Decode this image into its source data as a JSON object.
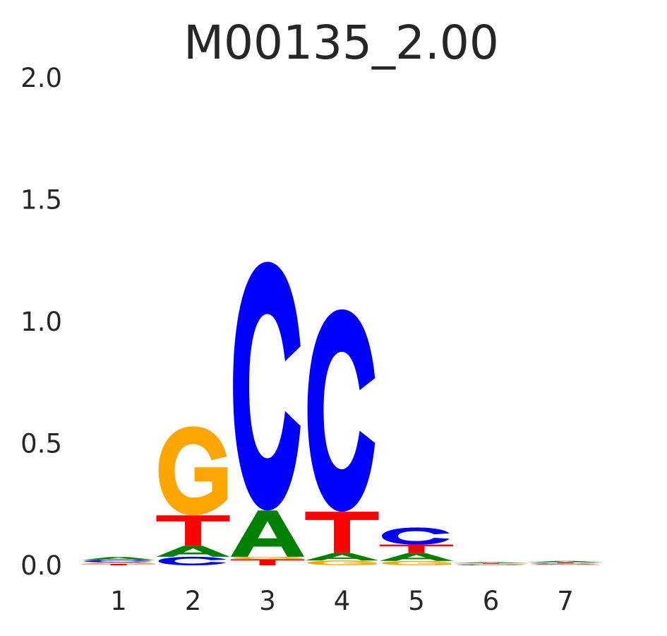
{
  "chart_data": {
    "type": "sequence-logo",
    "title": "M00135_2.00",
    "ylim": [
      0,
      2.0
    ],
    "y_ticks": [
      {
        "value": 0.0,
        "label": "0.0"
      },
      {
        "value": 0.5,
        "label": "0.5"
      },
      {
        "value": 1.0,
        "label": "1.0"
      },
      {
        "value": 1.5,
        "label": "1.5"
      },
      {
        "value": 2.0,
        "label": "2.0"
      }
    ],
    "positions": [
      {
        "label": "1",
        "letters": [
          {
            "base": "T",
            "height": 0.006
          },
          {
            "base": "G",
            "height": 0.006
          },
          {
            "base": "C",
            "height": 0.01
          },
          {
            "base": "A",
            "height": 0.012
          }
        ]
      },
      {
        "label": "2",
        "letters": [
          {
            "base": "C",
            "height": 0.035
          },
          {
            "base": "A",
            "height": 0.045
          },
          {
            "base": "T",
            "height": 0.125
          },
          {
            "base": "G",
            "height": 0.365
          }
        ]
      },
      {
        "label": "3",
        "letters": [
          {
            "base": "T",
            "height": 0.025
          },
          {
            "base": "G",
            "height": 0.01
          },
          {
            "base": "A",
            "height": 0.19
          },
          {
            "base": "C",
            "height": 1.02
          }
        ]
      },
      {
        "label": "4",
        "letters": [
          {
            "base": "G",
            "height": 0.02
          },
          {
            "base": "A",
            "height": 0.03
          },
          {
            "base": "T",
            "height": 0.17
          },
          {
            "base": "C",
            "height": 0.83
          }
        ]
      },
      {
        "label": "5",
        "letters": [
          {
            "base": "G",
            "height": 0.018
          },
          {
            "base": "A",
            "height": 0.032
          },
          {
            "base": "T",
            "height": 0.035
          },
          {
            "base": "C",
            "height": 0.07
          }
        ]
      },
      {
        "label": "6",
        "letters": [
          {
            "base": "C",
            "height": 0.003
          },
          {
            "base": "G",
            "height": 0.003
          },
          {
            "base": "T",
            "height": 0.003
          },
          {
            "base": "A",
            "height": 0.004
          }
        ]
      },
      {
        "label": "7",
        "letters": [
          {
            "base": "G",
            "height": 0.004
          },
          {
            "base": "C",
            "height": 0.004
          },
          {
            "base": "T",
            "height": 0.004
          },
          {
            "base": "A",
            "height": 0.006
          }
        ]
      }
    ],
    "colors": {
      "A": "#008000",
      "C": "#0000ff",
      "G": "#ffa500",
      "T": "#ff0000"
    },
    "grid": false
  }
}
